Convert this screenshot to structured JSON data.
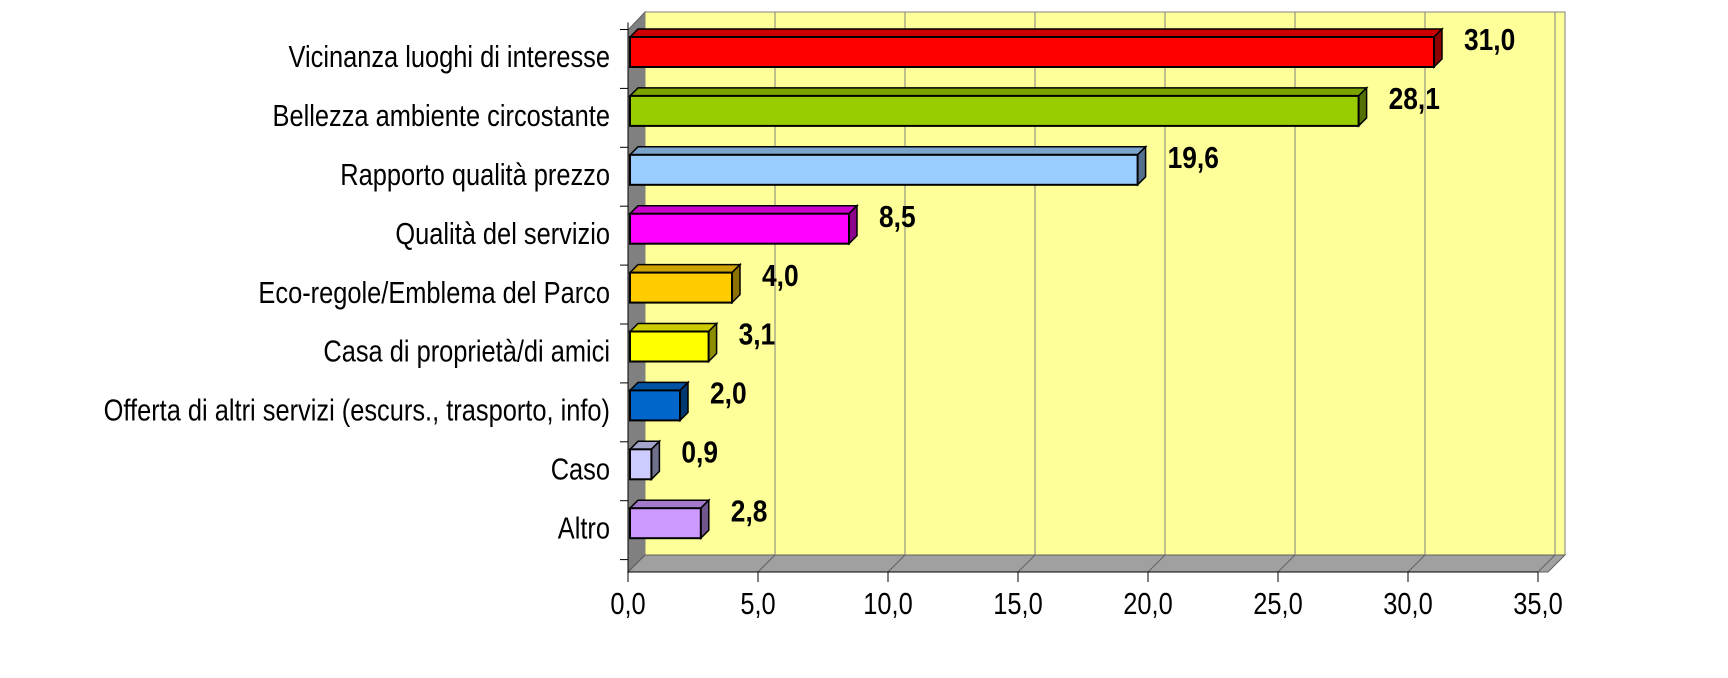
{
  "chart_data": {
    "type": "bar",
    "orientation": "horizontal",
    "categories": [
      "Vicinanza luoghi di interesse",
      "Bellezza ambiente circostante",
      "Rapporto qualità prezzo",
      "Qualità del servizio",
      "Eco-regole/Emblema del Parco",
      "Casa di proprietà/di amici",
      "Offerta di altri servizi (escurs., trasporto, info)",
      "Caso",
      "Altro"
    ],
    "values": [
      31.0,
      28.1,
      19.6,
      8.5,
      4.0,
      3.1,
      2.0,
      0.9,
      2.8
    ],
    "value_labels": [
      "31,0",
      "28,1",
      "19,6",
      "8,5",
      "4,0",
      "3,1",
      "2,0",
      "0,9",
      "2,8"
    ],
    "colors": [
      "#ff0000",
      "#99cc00",
      "#99ccff",
      "#ff00ff",
      "#ffcc00",
      "#ffff00",
      "#0066cc",
      "#ccccff",
      "#cc99ff"
    ],
    "xlim": [
      0,
      35
    ],
    "xticks": [
      {
        "value": 0,
        "label": "0,0"
      },
      {
        "value": 5,
        "label": "5,0"
      },
      {
        "value": 10,
        "label": "10,0"
      },
      {
        "value": 15,
        "label": "15,0"
      },
      {
        "value": 20,
        "label": "20,0"
      },
      {
        "value": 25,
        "label": "25,0"
      },
      {
        "value": 30,
        "label": "30,0"
      },
      {
        "value": 35,
        "label": "35,0"
      }
    ],
    "grid": true
  }
}
